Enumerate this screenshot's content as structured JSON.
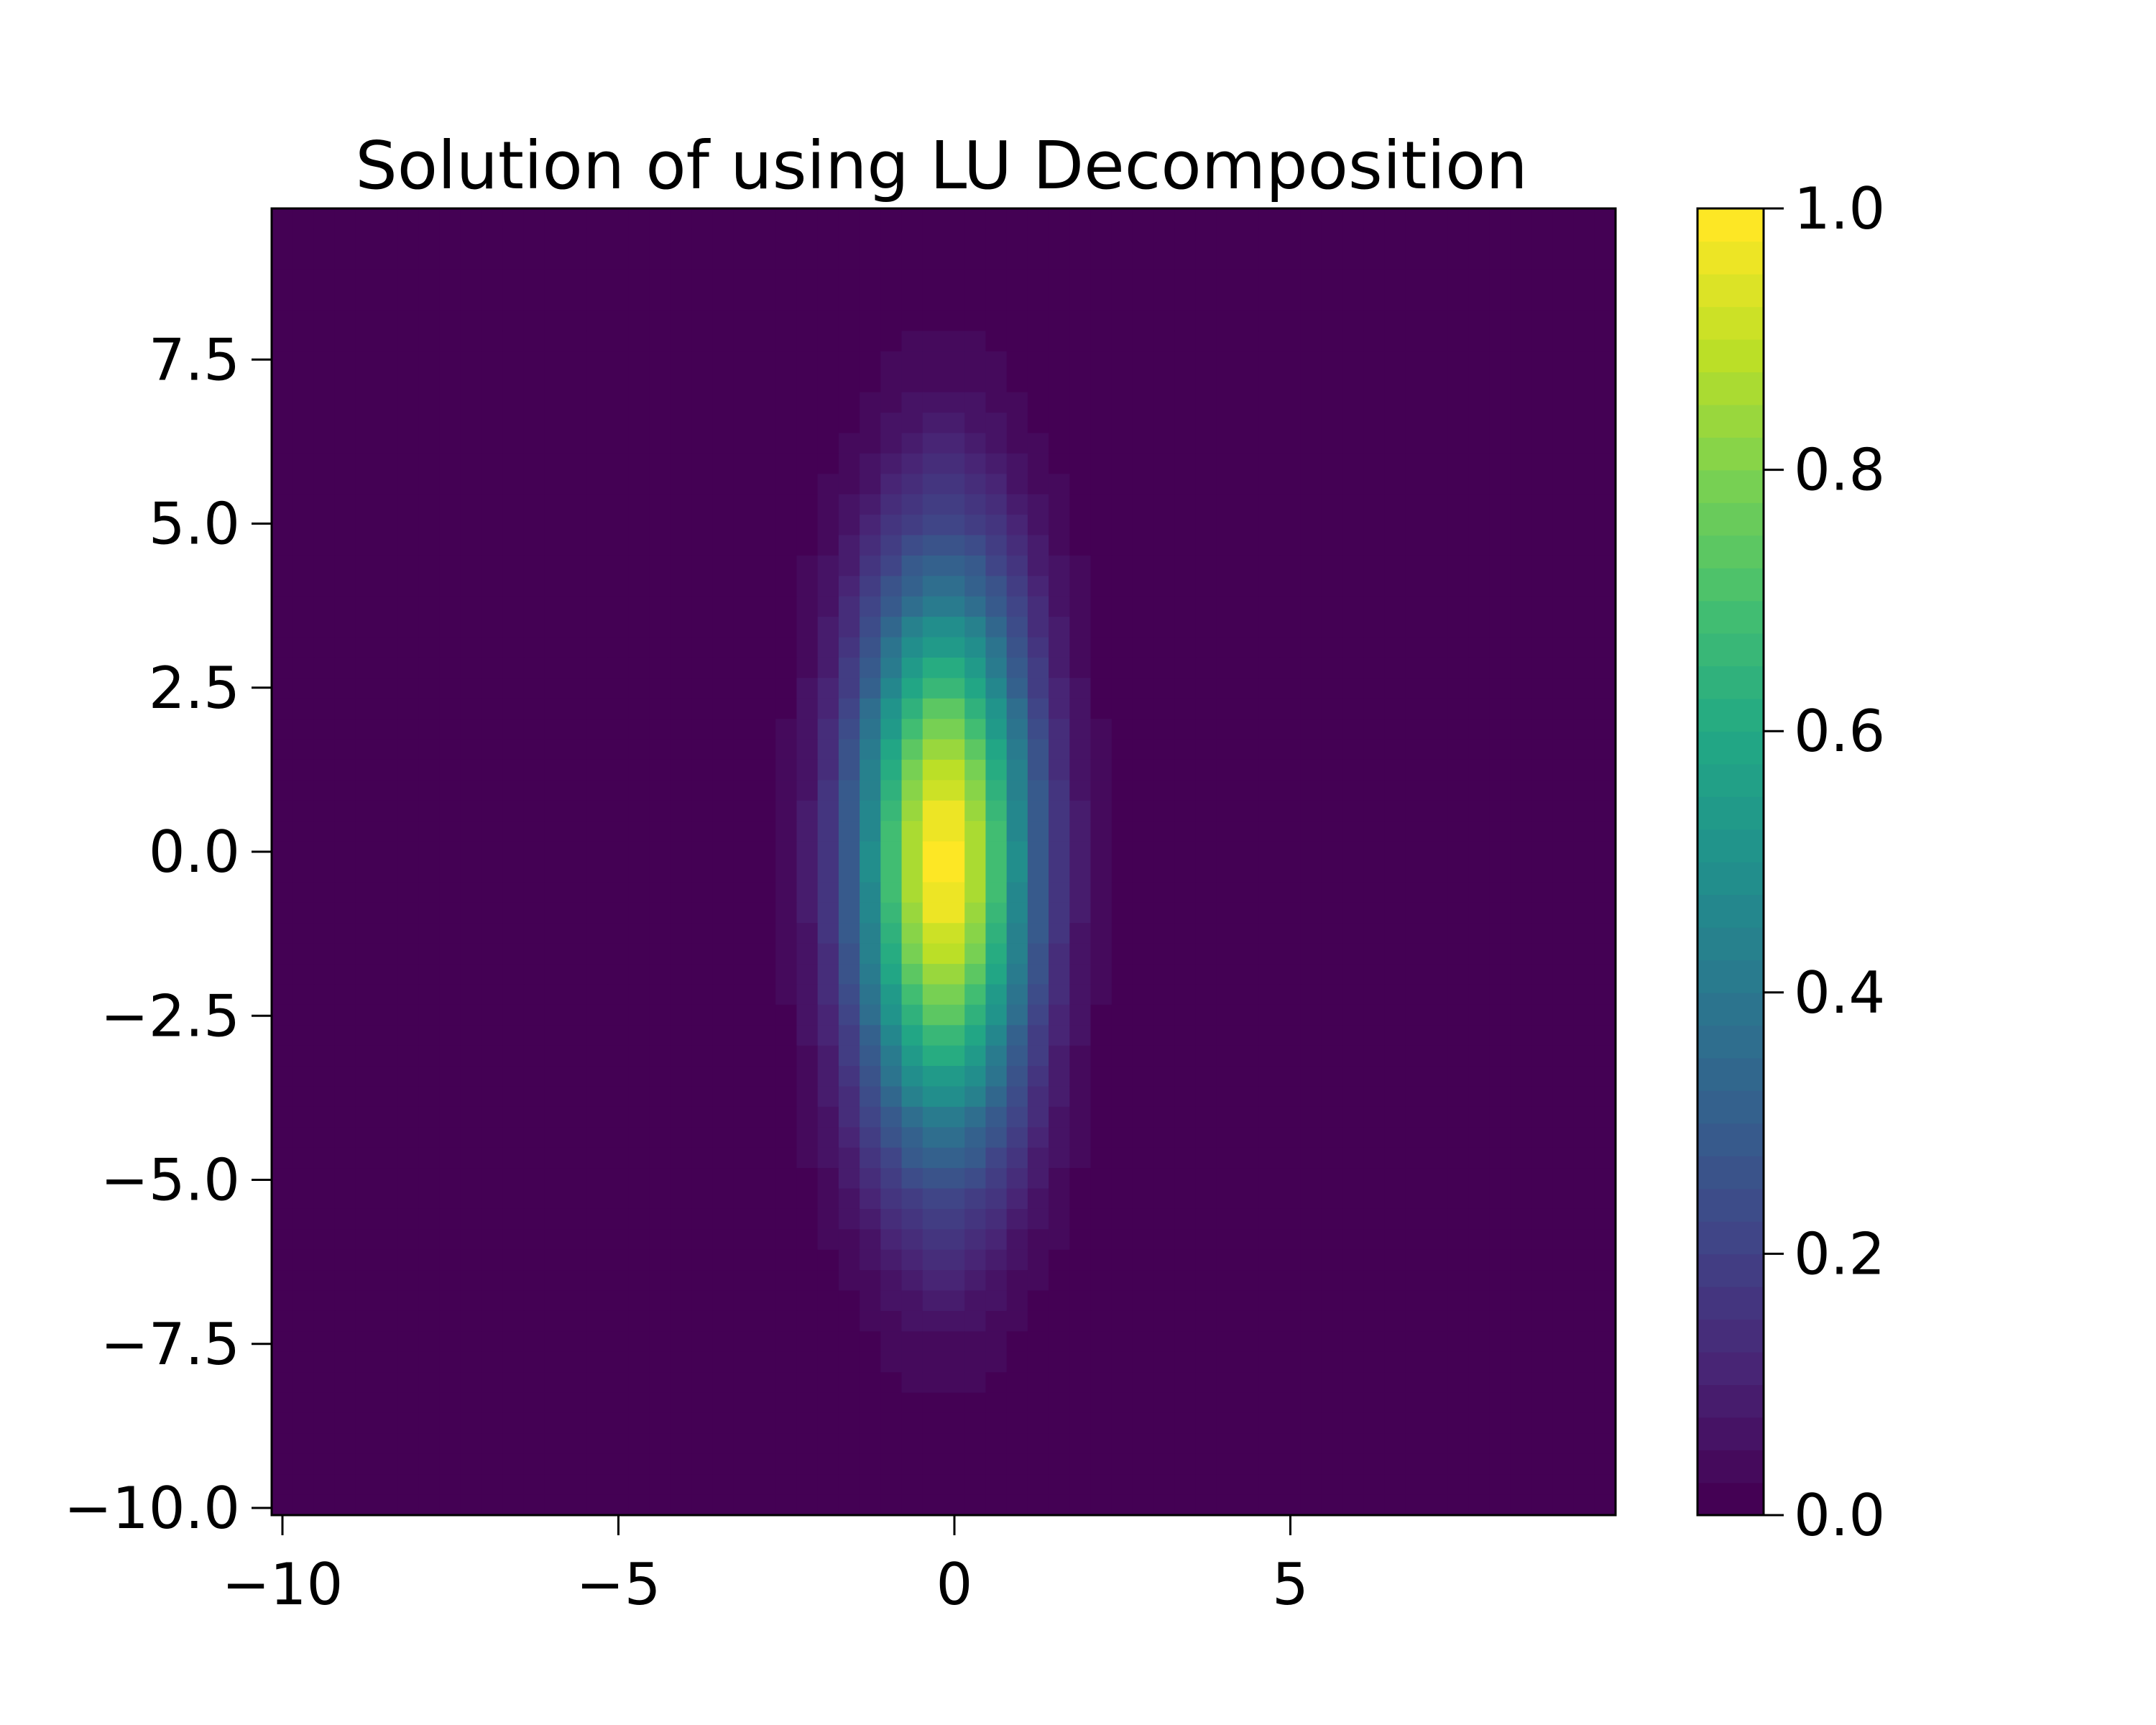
{
  "chart_data": {
    "type": "heatmap",
    "title": "Solution of using LU Decomposition",
    "xlabel": "",
    "ylabel": "",
    "xlim": [
      -10,
      10
    ],
    "ylim": [
      -10,
      10
    ],
    "grid": false,
    "colormap": "viridis",
    "x_ticks": [
      {
        "value": -10,
        "label": "−10"
      },
      {
        "value": -5,
        "label": "−5"
      },
      {
        "value": 0,
        "label": "0"
      },
      {
        "value": 5,
        "label": "5"
      }
    ],
    "y_ticks": [
      {
        "value": -10,
        "label": "−10.0"
      },
      {
        "value": -7.5,
        "label": "−7.5"
      },
      {
        "value": -5,
        "label": "−5.0"
      },
      {
        "value": -2.5,
        "label": "−2.5"
      },
      {
        "value": 0,
        "label": "0.0"
      },
      {
        "value": 2.5,
        "label": "2.5"
      },
      {
        "value": 5,
        "label": "5.0"
      },
      {
        "value": 7.5,
        "label": "7.5"
      }
    ],
    "field": {
      "description_formula": "exp(-(x^2)/(2*0.9^2) - (y^2)/(2*3.0^2))",
      "x_range": [
        -10,
        10
      ],
      "y_range": [
        -10,
        10
      ],
      "nx": 64,
      "ny": 64,
      "peak_value": 1.0,
      "peak_location": [
        0,
        0
      ],
      "sigma_x": 0.9,
      "sigma_y": 3.0
    },
    "colorbar": {
      "min": 0.0,
      "max": 1.0,
      "levels": 40,
      "ticks": [
        {
          "value": 0.0,
          "label": "0.0"
        },
        {
          "value": 0.2,
          "label": "0.2"
        },
        {
          "value": 0.4,
          "label": "0.4"
        },
        {
          "value": 0.6,
          "label": "0.6"
        },
        {
          "value": 0.8,
          "label": "0.8"
        },
        {
          "value": 1.0,
          "label": "1.0"
        }
      ]
    }
  }
}
